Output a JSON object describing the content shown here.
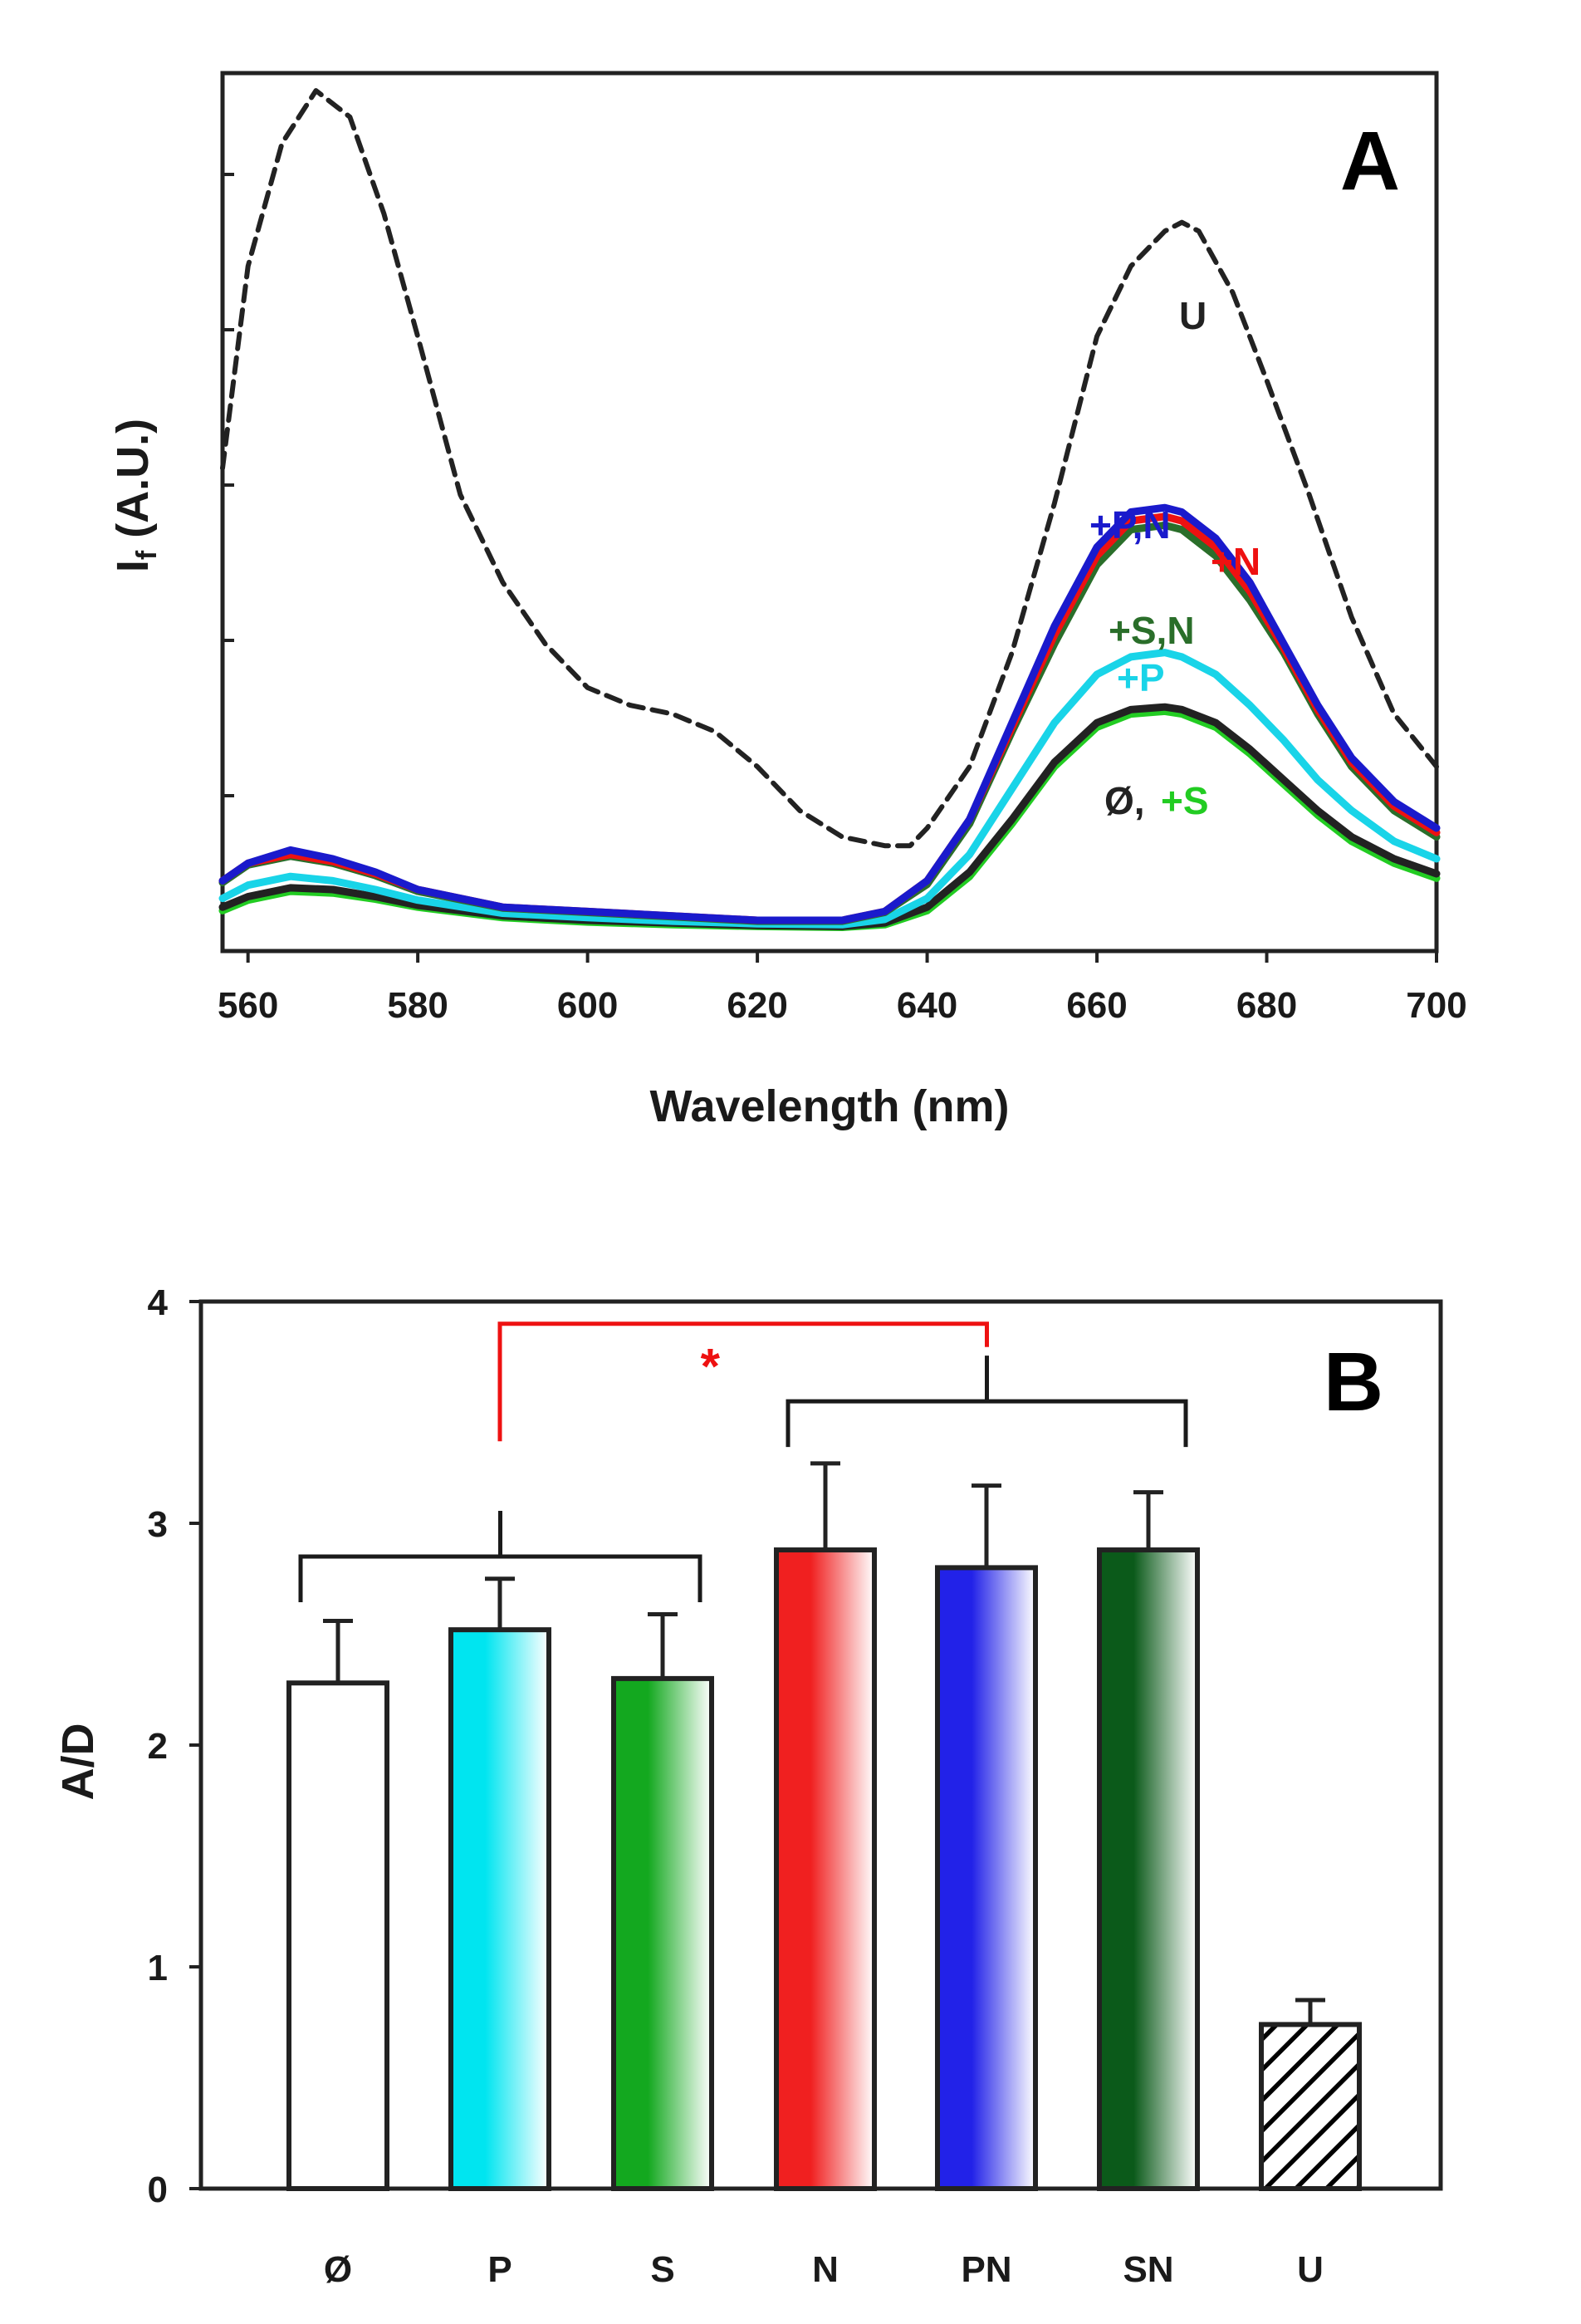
{
  "chart_data": [
    {
      "panel": "A",
      "type": "line",
      "title": "",
      "xlabel": "Wavelength (nm)",
      "ylabel": "I_f (A.U.)",
      "ylabel_main": "I",
      "ylabel_sub": "f",
      "ylabel_rest": " (A.U.)",
      "xlim": [
        557,
        700
      ],
      "ylim": [
        0,
        100
      ],
      "xticks": [
        560,
        580,
        600,
        620,
        640,
        660,
        680,
        700
      ],
      "ytick_count": 5,
      "legend": "inline labels",
      "series": [
        {
          "name": "U",
          "color": "#222222",
          "dashed": true,
          "x": [
            557,
            560,
            564,
            568,
            572,
            576,
            580,
            585,
            590,
            595,
            600,
            605,
            610,
            615,
            620,
            625,
            630,
            635,
            638,
            640,
            645,
            650,
            655,
            660,
            664,
            668,
            670,
            672,
            676,
            680,
            685,
            690,
            695,
            700
          ],
          "y": [
            55,
            78,
            92,
            98,
            95,
            84,
            70,
            52,
            42,
            35,
            30,
            28,
            27,
            25,
            21,
            16,
            13,
            12,
            12,
            14,
            21,
            34,
            51,
            70,
            78,
            82,
            83,
            82,
            75,
            65,
            52,
            38,
            27,
            21
          ]
        },
        {
          "name": "+P,N",
          "color": "#1a1acc",
          "dashed": false,
          "x": [
            557,
            560,
            565,
            570,
            575,
            580,
            590,
            600,
            610,
            620,
            630,
            635,
            640,
            645,
            650,
            655,
            660,
            664,
            668,
            670,
            674,
            678,
            682,
            686,
            690,
            695,
            700
          ],
          "y": [
            8,
            10,
            11.5,
            10.5,
            9,
            7,
            5,
            4.5,
            4,
            3.5,
            3.5,
            4.5,
            8,
            15,
            26,
            37,
            46,
            50,
            50.5,
            50,
            47,
            42,
            35,
            28,
            22,
            17,
            14
          ]
        },
        {
          "name": "+N",
          "color": "#ee1111",
          "dashed": false,
          "x": [
            557,
            560,
            565,
            570,
            575,
            580,
            590,
            600,
            610,
            620,
            630,
            635,
            640,
            645,
            650,
            655,
            660,
            664,
            668,
            670,
            674,
            678,
            682,
            686,
            690,
            695,
            700
          ],
          "y": [
            8,
            10,
            11,
            10.2,
            8.8,
            7,
            5,
            4.5,
            4,
            3.5,
            3.5,
            4.5,
            8,
            15,
            25.5,
            36,
            45,
            49,
            49.5,
            49,
            46,
            41,
            34.5,
            27.5,
            21.5,
            16.5,
            13.5
          ]
        },
        {
          "name": "+S,N",
          "color": "#2a6e2a",
          "dashed": false,
          "x": [
            557,
            560,
            565,
            570,
            575,
            580,
            590,
            600,
            610,
            620,
            630,
            635,
            640,
            645,
            650,
            655,
            660,
            664,
            668,
            670,
            674,
            678,
            682,
            686,
            690,
            695,
            700
          ],
          "y": [
            7.8,
            9.8,
            10.8,
            10,
            8.6,
            6.8,
            4.9,
            4.4,
            3.9,
            3.4,
            3.4,
            4.4,
            7.6,
            14.5,
            25,
            35,
            44,
            48,
            48.5,
            48,
            45,
            40,
            34,
            27,
            21,
            16,
            13
          ]
        },
        {
          "name": "+P",
          "color": "#19d4e8",
          "dashed": false,
          "x": [
            557,
            560,
            565,
            570,
            575,
            580,
            590,
            600,
            610,
            620,
            630,
            635,
            640,
            645,
            650,
            655,
            660,
            664,
            668,
            670,
            674,
            678,
            682,
            686,
            690,
            695,
            700
          ],
          "y": [
            6,
            7.5,
            8.5,
            8,
            7,
            5.8,
            4.3,
            3.8,
            3.4,
            3.1,
            3,
            3.6,
            6,
            11,
            18.5,
            26,
            31.5,
            33.5,
            34,
            33.5,
            31.5,
            28,
            24,
            19.5,
            16,
            12.5,
            10.5
          ]
        },
        {
          "name": "Ø",
          "color": "#222222",
          "dashed": false,
          "x": [
            557,
            560,
            565,
            570,
            575,
            580,
            590,
            600,
            610,
            620,
            630,
            635,
            640,
            645,
            650,
            655,
            660,
            664,
            668,
            670,
            674,
            678,
            682,
            686,
            690,
            695,
            700
          ],
          "y": [
            5,
            6.2,
            7.2,
            7,
            6.2,
            5.2,
            4,
            3.5,
            3.2,
            2.9,
            2.8,
            3.2,
            5,
            9,
            15,
            21.5,
            26,
            27.5,
            27.8,
            27.5,
            26,
            23,
            19.5,
            16,
            13,
            10.5,
            8.8
          ]
        },
        {
          "name": "+S",
          "color": "#22cc22",
          "dashed": false,
          "x": [
            557,
            560,
            565,
            570,
            575,
            580,
            590,
            600,
            610,
            620,
            630,
            635,
            640,
            645,
            650,
            655,
            660,
            664,
            668,
            670,
            674,
            678,
            682,
            686,
            690,
            695,
            700
          ],
          "y": [
            4.6,
            5.8,
            6.8,
            6.6,
            5.9,
            5,
            3.8,
            3.3,
            3,
            2.8,
            2.7,
            3,
            4.6,
            8.5,
            14.5,
            21,
            25.5,
            27,
            27.3,
            27,
            25.5,
            22.5,
            19,
            15.5,
            12.5,
            10,
            8.3
          ]
        }
      ],
      "annotations": [
        {
          "text": "A",
          "role": "panel"
        },
        {
          "text": "U",
          "color": "#222222"
        },
        {
          "text": "+P,N",
          "color": "#1a1acc"
        },
        {
          "text": "+N",
          "color": "#ee1111"
        },
        {
          "text": "+S,N",
          "color": "#2a6e2a"
        },
        {
          "text": "+P",
          "color": "#19d4e8"
        },
        {
          "text": "Ø,",
          "color": "#222222"
        },
        {
          "text": "+S",
          "color": "#22cc22"
        }
      ]
    },
    {
      "panel": "B",
      "type": "bar",
      "title": "",
      "xlabel": "",
      "ylabel": "A/D",
      "ylim": [
        0,
        4
      ],
      "yticks": [
        0,
        1,
        2,
        3,
        4
      ],
      "categories": [
        "Ø",
        "P",
        "S",
        "N",
        "PN",
        "SN",
        "U"
      ],
      "values": [
        2.28,
        2.52,
        2.3,
        2.88,
        2.8,
        2.88,
        0.74
      ],
      "errors": [
        0.28,
        0.23,
        0.29,
        0.39,
        0.37,
        0.26,
        0.11
      ],
      "fills": [
        {
          "type": "solid",
          "color": "#ffffff"
        },
        {
          "type": "gradient",
          "from": "#00e5f0",
          "to": "#ffffff"
        },
        {
          "type": "gradient",
          "from": "#13a81f",
          "to": "#ffffff"
        },
        {
          "type": "gradient",
          "from": "#f02020",
          "to": "#ffffff"
        },
        {
          "type": "gradient",
          "from": "#2222e8",
          "to": "#ffffff"
        },
        {
          "type": "gradient",
          "from": "#0b5a1a",
          "to": "#ffffff"
        },
        {
          "type": "hatch",
          "color": "#000000"
        }
      ],
      "brackets": [
        {
          "from": 0,
          "to": 2,
          "level": 2.85,
          "color": "#1a1a1a"
        },
        {
          "from": 3,
          "to": 5,
          "level": 3.55,
          "color": "#1a1a1a"
        }
      ],
      "significance": {
        "from": 1,
        "to": 4,
        "level": 3.9,
        "color": "#ee1111",
        "label": "*"
      },
      "annotations": [
        {
          "text": "B",
          "role": "panel"
        }
      ]
    }
  ]
}
